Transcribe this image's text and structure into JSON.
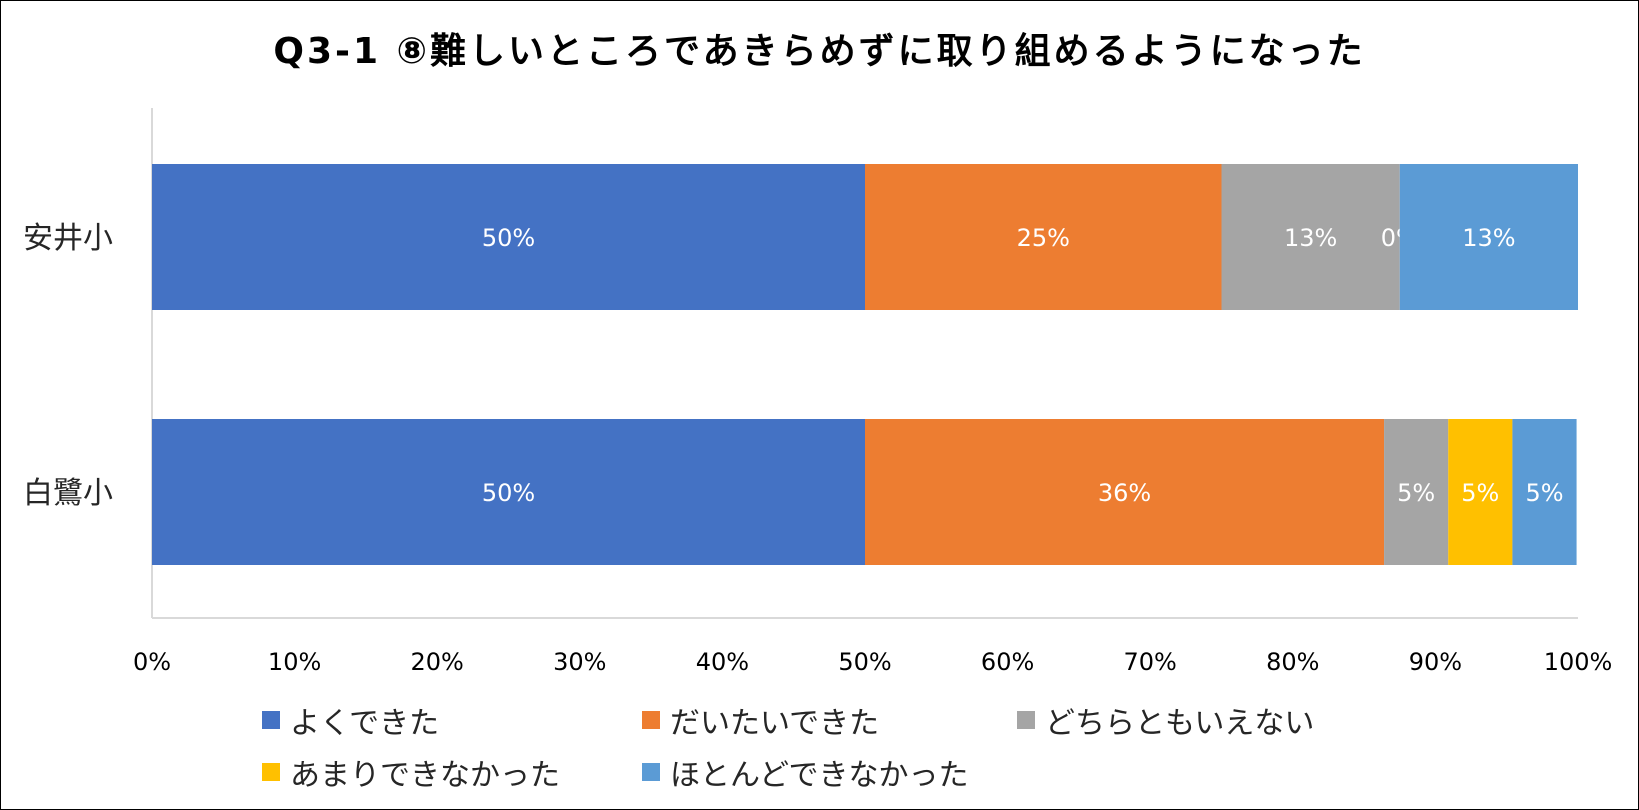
{
  "chart_data": {
    "type": "bar",
    "orientation": "horizontal",
    "stacked": "percent",
    "title": "Q3-1 ⑧難しいところであきらめずに取り組めるようになった",
    "categories": [
      "安井小",
      "白鷺小"
    ],
    "series": [
      {
        "name": "よくできた",
        "color": "#4472C4",
        "values": [
          50,
          50
        ],
        "labels": [
          "50%",
          "50%"
        ]
      },
      {
        "name": "だいたいできた",
        "color": "#ED7D31",
        "values": [
          25,
          36.4
        ],
        "labels": [
          "25%",
          "36%"
        ]
      },
      {
        "name": "どちらともいえない",
        "color": "#A5A5A5",
        "values": [
          12.5,
          4.5
        ],
        "labels": [
          "13%",
          "5%"
        ]
      },
      {
        "name": "あまりできなかった",
        "color": "#FFC000",
        "values": [
          0,
          4.5
        ],
        "labels": [
          "0%",
          "5%"
        ]
      },
      {
        "name": "ほとんどできなかった",
        "color": "#5B9BD5",
        "values": [
          12.5,
          4.5
        ],
        "labels": [
          "13%",
          "5%"
        ]
      }
    ],
    "xlim": [
      0,
      100
    ],
    "xticks": [
      "0%",
      "10%",
      "20%",
      "30%",
      "40%",
      "50%",
      "60%",
      "70%",
      "80%",
      "90%",
      "100%"
    ],
    "grid": false,
    "legend_position": "bottom"
  }
}
